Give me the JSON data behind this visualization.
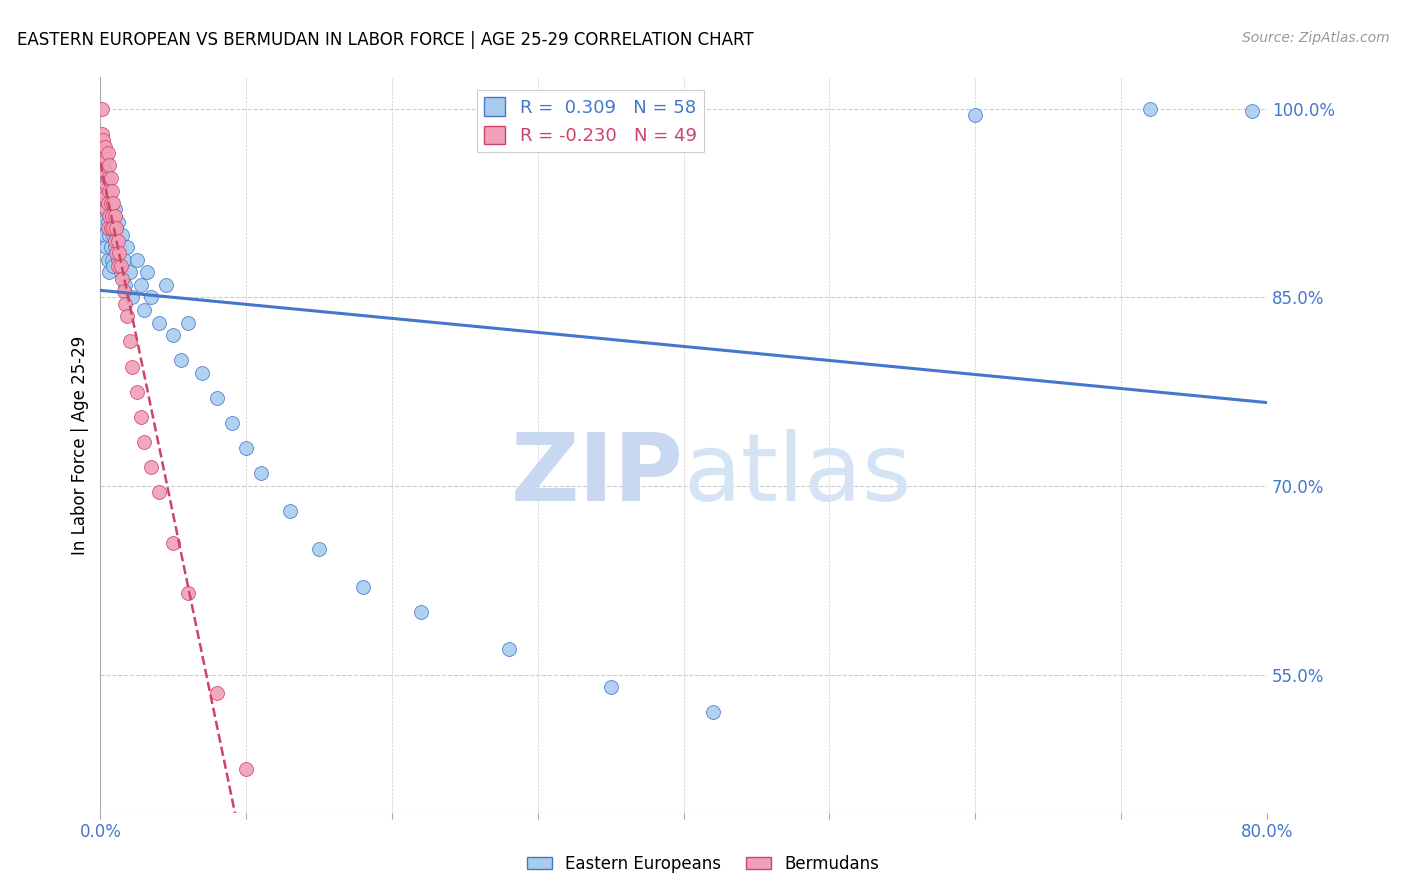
{
  "title": "EASTERN EUROPEAN VS BERMUDAN IN LABOR FORCE | AGE 25-29 CORRELATION CHART",
  "source": "Source: ZipAtlas.com",
  "ylabel": "In Labor Force | Age 25-29",
  "legend_label_blue": "Eastern Europeans",
  "legend_label_pink": "Bermudans",
  "r_blue": 0.309,
  "n_blue": 58,
  "r_pink": -0.23,
  "n_pink": 49,
  "xlim": [
    0.0,
    0.8
  ],
  "ylim": [
    0.44,
    1.025
  ],
  "xticks": [
    0.0,
    0.1,
    0.2,
    0.3,
    0.4,
    0.5,
    0.6,
    0.7,
    0.8
  ],
  "yticks_right": [
    1.0,
    0.85,
    0.7,
    0.55
  ],
  "ytick_labels_right": [
    "100.0%",
    "85.0%",
    "70.0%",
    "55.0%"
  ],
  "color_blue": "#A8CCEE",
  "color_pink": "#F0A0B8",
  "trendline_blue": "#4477CC",
  "trendline_pink": "#CC4466",
  "watermark_zip": "ZIP",
  "watermark_atlas": "atlas",
  "watermark_color": "#C8D8F0",
  "grid_color": "#CCCCCC",
  "blue_x": [
    0.001,
    0.002,
    0.002,
    0.003,
    0.003,
    0.004,
    0.004,
    0.004,
    0.005,
    0.005,
    0.005,
    0.006,
    0.006,
    0.006,
    0.007,
    0.007,
    0.008,
    0.008,
    0.009,
    0.009,
    0.01,
    0.01,
    0.011,
    0.012,
    0.012,
    0.013,
    0.014,
    0.015,
    0.016,
    0.017,
    0.018,
    0.02,
    0.022,
    0.025,
    0.028,
    0.03,
    0.032,
    0.035,
    0.04,
    0.045,
    0.05,
    0.055,
    0.06,
    0.07,
    0.08,
    0.09,
    0.1,
    0.11,
    0.13,
    0.15,
    0.18,
    0.22,
    0.28,
    0.35,
    0.42,
    0.6,
    0.72,
    0.79
  ],
  "blue_y": [
    0.96,
    0.94,
    0.91,
    0.93,
    0.9,
    0.95,
    0.92,
    0.89,
    0.935,
    0.91,
    0.88,
    0.93,
    0.9,
    0.87,
    0.92,
    0.89,
    0.91,
    0.88,
    0.9,
    0.875,
    0.92,
    0.89,
    0.9,
    0.88,
    0.91,
    0.89,
    0.87,
    0.9,
    0.88,
    0.86,
    0.89,
    0.87,
    0.85,
    0.88,
    0.86,
    0.84,
    0.87,
    0.85,
    0.83,
    0.86,
    0.82,
    0.8,
    0.83,
    0.79,
    0.77,
    0.75,
    0.73,
    0.71,
    0.68,
    0.65,
    0.62,
    0.6,
    0.57,
    0.54,
    0.52,
    0.995,
    1.0,
    0.998
  ],
  "pink_x": [
    0.001,
    0.001,
    0.001,
    0.002,
    0.002,
    0.002,
    0.003,
    0.003,
    0.003,
    0.004,
    0.004,
    0.004,
    0.005,
    0.005,
    0.005,
    0.005,
    0.006,
    0.006,
    0.006,
    0.007,
    0.007,
    0.007,
    0.008,
    0.008,
    0.009,
    0.009,
    0.01,
    0.01,
    0.011,
    0.011,
    0.012,
    0.012,
    0.013,
    0.014,
    0.015,
    0.016,
    0.017,
    0.018,
    0.02,
    0.022,
    0.025,
    0.028,
    0.03,
    0.035,
    0.04,
    0.05,
    0.06,
    0.08,
    0.1
  ],
  "pink_y": [
    1.0,
    0.98,
    0.96,
    0.975,
    0.955,
    0.935,
    0.97,
    0.95,
    0.93,
    0.96,
    0.94,
    0.92,
    0.965,
    0.945,
    0.925,
    0.905,
    0.955,
    0.935,
    0.915,
    0.945,
    0.925,
    0.905,
    0.935,
    0.915,
    0.925,
    0.905,
    0.915,
    0.895,
    0.905,
    0.885,
    0.895,
    0.875,
    0.885,
    0.875,
    0.865,
    0.855,
    0.845,
    0.835,
    0.815,
    0.795,
    0.775,
    0.755,
    0.735,
    0.715,
    0.695,
    0.655,
    0.615,
    0.535,
    0.475
  ]
}
